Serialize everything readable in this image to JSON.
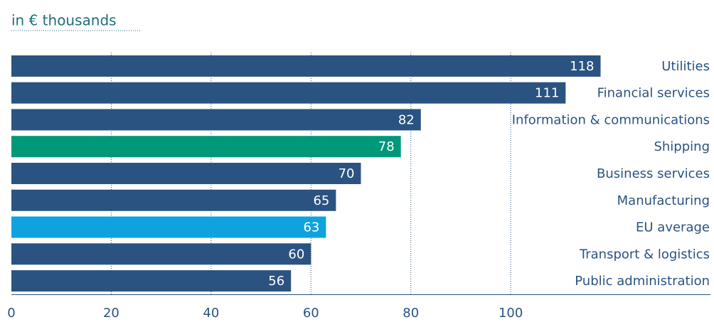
{
  "chart_data": {
    "type": "bar",
    "orientation": "horizontal",
    "subtitle": "in € thousands",
    "categories": [
      "Utilities",
      "Financial services",
      "Information & communications",
      "Shipping",
      "Business services",
      "Manufacturing",
      "EU average",
      "Transport & logistics",
      "Public administration"
    ],
    "values": [
      118,
      111,
      82,
      78,
      70,
      65,
      63,
      60,
      56
    ],
    "colors": [
      "#2a5381",
      "#2a5381",
      "#2a5381",
      "#00987b",
      "#2a5381",
      "#2a5381",
      "#0ea3df",
      "#2a5381",
      "#2a5381"
    ],
    "xlim": [
      0,
      140
    ],
    "xticks": [
      0,
      20,
      40,
      60,
      80,
      100
    ],
    "grid": true
  }
}
